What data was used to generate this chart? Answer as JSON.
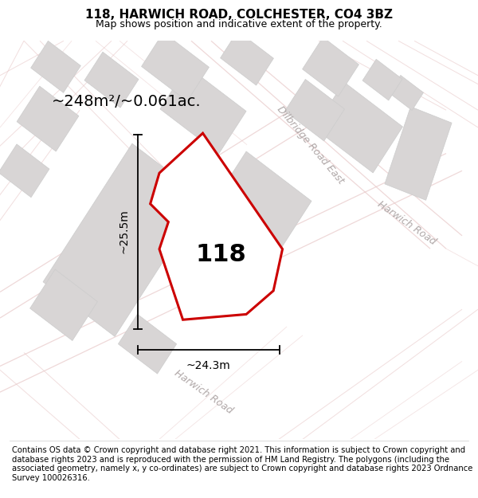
{
  "title": "118, HARWICH ROAD, COLCHESTER, CO4 3BZ",
  "subtitle": "Map shows position and indicative extent of the property.",
  "footer": "Contains OS data © Crown copyright and database right 2021. This information is subject to Crown copyright and database rights 2023 and is reproduced with the permission of HM Land Registry. The polygons (including the associated geometry, namely x, y co-ordinates) are subject to Crown copyright and database rights 2023 Ordnance Survey 100026316.",
  "area_text": "~248m²/~0.061ac.",
  "dim_height": "~25.5m",
  "dim_width": "~24.3m",
  "house_number": "118",
  "map_bg": "#f2f0f0",
  "road_outline_color": "#e8c8c8",
  "building_color": "#d8d5d5",
  "building_edge": "#cccccc",
  "property_color": "#cc0000",
  "property_fill": "white",
  "road_label_color": "#b0a8a8",
  "title_fontsize": 11,
  "subtitle_fontsize": 9,
  "footer_fontsize": 7.2,
  "area_fontsize": 14,
  "dim_fontsize": 10,
  "house_fontsize": 22
}
